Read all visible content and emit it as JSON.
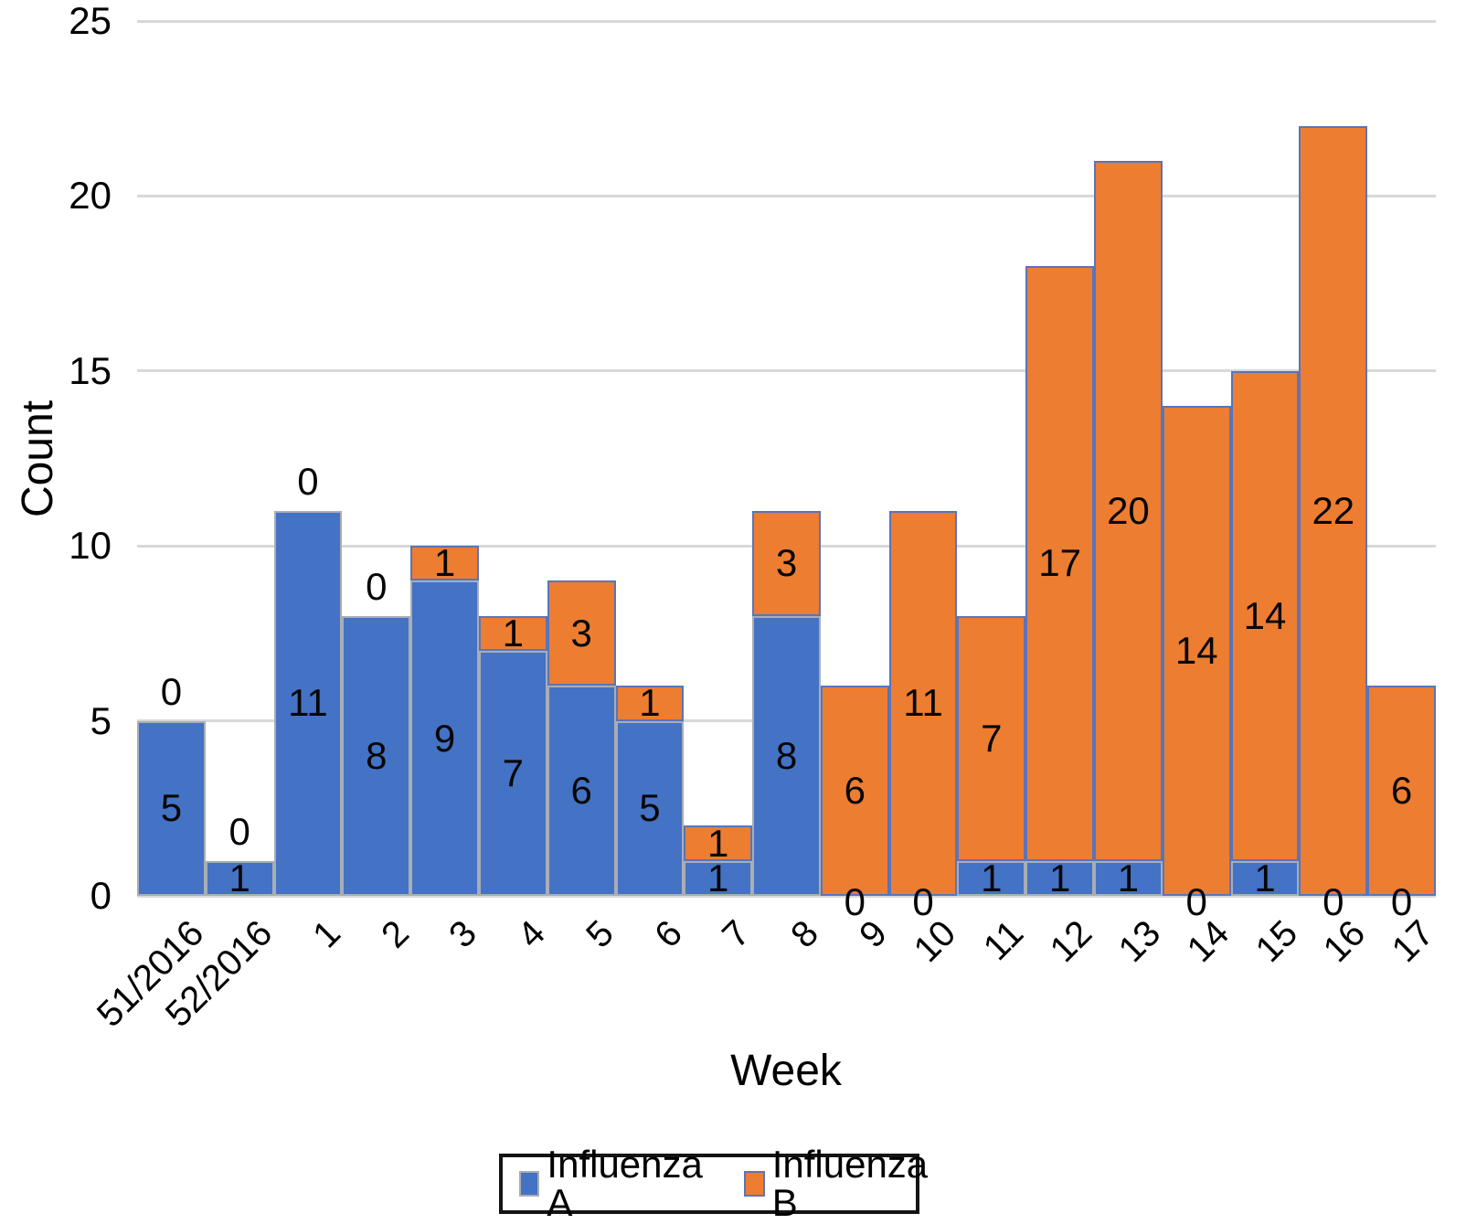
{
  "chart_data": {
    "type": "bar",
    "stacked": true,
    "title": "",
    "xlabel": "Week",
    "ylabel": "Count",
    "ylim": [
      0,
      25
    ],
    "yticks": [
      0,
      5,
      10,
      15,
      20,
      25
    ],
    "grid": true,
    "legend_position": "bottom",
    "categories": [
      "51/2016",
      "52/2016",
      "1",
      "2",
      "3",
      "4",
      "5",
      "6",
      "7",
      "8",
      "9",
      "10",
      "11",
      "12",
      "13",
      "14",
      "15",
      "16",
      "17"
    ],
    "series": [
      {
        "name": "Influenza A",
        "color": "#4472C4",
        "border_color": "#A9ADB4",
        "values": [
          5,
          1,
          11,
          8,
          9,
          7,
          6,
          5,
          1,
          8,
          0,
          0,
          1,
          1,
          1,
          0,
          1,
          0,
          0
        ]
      },
      {
        "name": "Influenza B",
        "color": "#ED7D31",
        "border_color": "#5B74B8",
        "values": [
          0,
          0,
          0,
          0,
          1,
          1,
          3,
          1,
          1,
          3,
          6,
          11,
          7,
          17,
          20,
          14,
          14,
          22,
          6
        ]
      }
    ],
    "grid_color": "#D8D8D8",
    "text_color": "#000000",
    "legend_border_color": "#141414"
  }
}
